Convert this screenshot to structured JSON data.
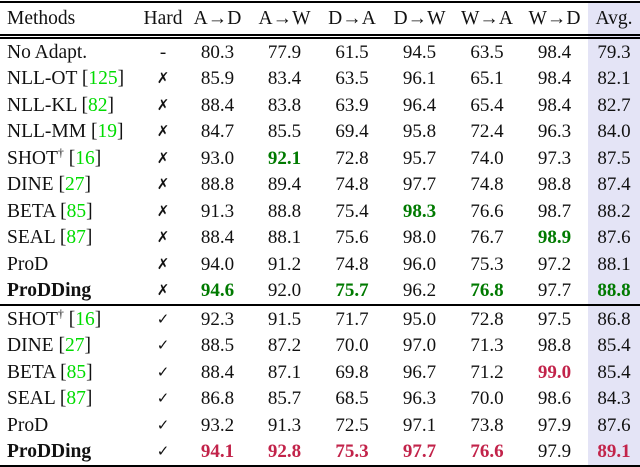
{
  "table": {
    "columns": [
      "Methods",
      "Hard",
      "A→D",
      "A→W",
      "D→A",
      "D→W",
      "W→A",
      "W→D",
      "Avg."
    ],
    "colors": {
      "citation_green": "#00dc00",
      "best_green": "#007a00",
      "best_red": "#c2234a",
      "avg_column_bg": "#e4e4f6"
    },
    "symbols": {
      "cross": "✗",
      "check": "✓",
      "dash": "-",
      "dagger": "†"
    },
    "sections": [
      {
        "rows": [
          {
            "method": "No Adapt.",
            "cite": null,
            "dagger": false,
            "bold": false,
            "hard": "-",
            "values": [
              {
                "v": "80.3"
              },
              {
                "v": "77.9"
              },
              {
                "v": "61.5"
              },
              {
                "v": "94.5"
              },
              {
                "v": "63.5"
              },
              {
                "v": "98.4"
              },
              {
                "v": "79.3"
              }
            ]
          },
          {
            "method": "NLL-OT",
            "cite": "125",
            "dagger": false,
            "bold": false,
            "hard": "✗",
            "values": [
              {
                "v": "85.9"
              },
              {
                "v": "83.4"
              },
              {
                "v": "63.5"
              },
              {
                "v": "96.1"
              },
              {
                "v": "65.1"
              },
              {
                "v": "98.4"
              },
              {
                "v": "82.1"
              }
            ]
          },
          {
            "method": "NLL-KL",
            "cite": "82",
            "dagger": false,
            "bold": false,
            "hard": "✗",
            "values": [
              {
                "v": "88.4"
              },
              {
                "v": "83.8"
              },
              {
                "v": "63.9"
              },
              {
                "v": "96.4"
              },
              {
                "v": "65.4"
              },
              {
                "v": "98.4"
              },
              {
                "v": "82.7"
              }
            ]
          },
          {
            "method": "NLL-MM",
            "cite": "19",
            "dagger": false,
            "bold": false,
            "hard": "✗",
            "values": [
              {
                "v": "84.7"
              },
              {
                "v": "85.5"
              },
              {
                "v": "69.4"
              },
              {
                "v": "95.8"
              },
              {
                "v": "72.4"
              },
              {
                "v": "96.3"
              },
              {
                "v": "84.0"
              }
            ]
          },
          {
            "method": "SHOT",
            "cite": "16",
            "dagger": true,
            "bold": false,
            "hard": "✗",
            "values": [
              {
                "v": "93.0"
              },
              {
                "v": "92.1",
                "hl": "g"
              },
              {
                "v": "72.8"
              },
              {
                "v": "95.7"
              },
              {
                "v": "74.0"
              },
              {
                "v": "97.3"
              },
              {
                "v": "87.5"
              }
            ]
          },
          {
            "method": "DINE",
            "cite": "27",
            "dagger": false,
            "bold": false,
            "hard": "✗",
            "values": [
              {
                "v": "88.8"
              },
              {
                "v": "89.4"
              },
              {
                "v": "74.8"
              },
              {
                "v": "97.7"
              },
              {
                "v": "74.8"
              },
              {
                "v": "98.8"
              },
              {
                "v": "87.4"
              }
            ]
          },
          {
            "method": "BETA",
            "cite": "85",
            "dagger": false,
            "bold": false,
            "hard": "✗",
            "values": [
              {
                "v": "91.3"
              },
              {
                "v": "88.8"
              },
              {
                "v": "75.4"
              },
              {
                "v": "98.3",
                "hl": "g"
              },
              {
                "v": "76.6"
              },
              {
                "v": "98.7"
              },
              {
                "v": "88.2"
              }
            ]
          },
          {
            "method": "SEAL",
            "cite": "87",
            "dagger": false,
            "bold": false,
            "hard": "✗",
            "values": [
              {
                "v": "88.4"
              },
              {
                "v": "88.1"
              },
              {
                "v": "75.6"
              },
              {
                "v": "98.0"
              },
              {
                "v": "76.7"
              },
              {
                "v": "98.9",
                "hl": "g"
              },
              {
                "v": "87.6"
              }
            ]
          },
          {
            "method": "ProD",
            "cite": null,
            "dagger": false,
            "bold": false,
            "hard": "✗",
            "values": [
              {
                "v": "94.0"
              },
              {
                "v": "91.2"
              },
              {
                "v": "74.8"
              },
              {
                "v": "96.0"
              },
              {
                "v": "75.3"
              },
              {
                "v": "97.2"
              },
              {
                "v": "88.1"
              }
            ]
          },
          {
            "method": "ProDDing",
            "cite": null,
            "dagger": false,
            "bold": true,
            "hard": "✗",
            "values": [
              {
                "v": "94.6",
                "hl": "g"
              },
              {
                "v": "92.0"
              },
              {
                "v": "75.7",
                "hl": "g"
              },
              {
                "v": "96.2"
              },
              {
                "v": "76.8",
                "hl": "g"
              },
              {
                "v": "97.7"
              },
              {
                "v": "88.8",
                "hl": "g"
              }
            ]
          }
        ]
      },
      {
        "rows": [
          {
            "method": "SHOT",
            "cite": "16",
            "dagger": true,
            "bold": false,
            "hard": "✓",
            "values": [
              {
                "v": "92.3"
              },
              {
                "v": "91.5"
              },
              {
                "v": "71.7"
              },
              {
                "v": "95.0"
              },
              {
                "v": "72.8"
              },
              {
                "v": "97.5"
              },
              {
                "v": "86.8"
              }
            ]
          },
          {
            "method": "DINE",
            "cite": "27",
            "dagger": false,
            "bold": false,
            "hard": "✓",
            "values": [
              {
                "v": "88.5"
              },
              {
                "v": "87.2"
              },
              {
                "v": "70.0"
              },
              {
                "v": "97.0"
              },
              {
                "v": "71.3"
              },
              {
                "v": "98.8"
              },
              {
                "v": "85.4"
              }
            ]
          },
          {
            "method": "BETA",
            "cite": "85",
            "dagger": false,
            "bold": false,
            "hard": "✓",
            "values": [
              {
                "v": "88.4"
              },
              {
                "v": "87.1"
              },
              {
                "v": "69.8"
              },
              {
                "v": "96.7"
              },
              {
                "v": "71.2"
              },
              {
                "v": "99.0",
                "hl": "r"
              },
              {
                "v": "85.4"
              }
            ]
          },
          {
            "method": "SEAL",
            "cite": "87",
            "dagger": false,
            "bold": false,
            "hard": "✓",
            "values": [
              {
                "v": "86.8"
              },
              {
                "v": "85.7"
              },
              {
                "v": "68.5"
              },
              {
                "v": "96.3"
              },
              {
                "v": "70.0"
              },
              {
                "v": "98.6"
              },
              {
                "v": "84.3"
              }
            ]
          },
          {
            "method": "ProD",
            "cite": null,
            "dagger": false,
            "bold": false,
            "hard": "✓",
            "values": [
              {
                "v": "93.2"
              },
              {
                "v": "91.3"
              },
              {
                "v": "72.5"
              },
              {
                "v": "97.1"
              },
              {
                "v": "73.8"
              },
              {
                "v": "97.9"
              },
              {
                "v": "87.6"
              }
            ]
          },
          {
            "method": "ProDDing",
            "cite": null,
            "dagger": false,
            "bold": true,
            "hard": "✓",
            "values": [
              {
                "v": "94.1",
                "hl": "r"
              },
              {
                "v": "92.8",
                "hl": "r"
              },
              {
                "v": "75.3",
                "hl": "r"
              },
              {
                "v": "97.7",
                "hl": "r"
              },
              {
                "v": "76.6",
                "hl": "r"
              },
              {
                "v": "97.9"
              },
              {
                "v": "89.1",
                "hl": "r"
              }
            ]
          }
        ]
      }
    ]
  }
}
